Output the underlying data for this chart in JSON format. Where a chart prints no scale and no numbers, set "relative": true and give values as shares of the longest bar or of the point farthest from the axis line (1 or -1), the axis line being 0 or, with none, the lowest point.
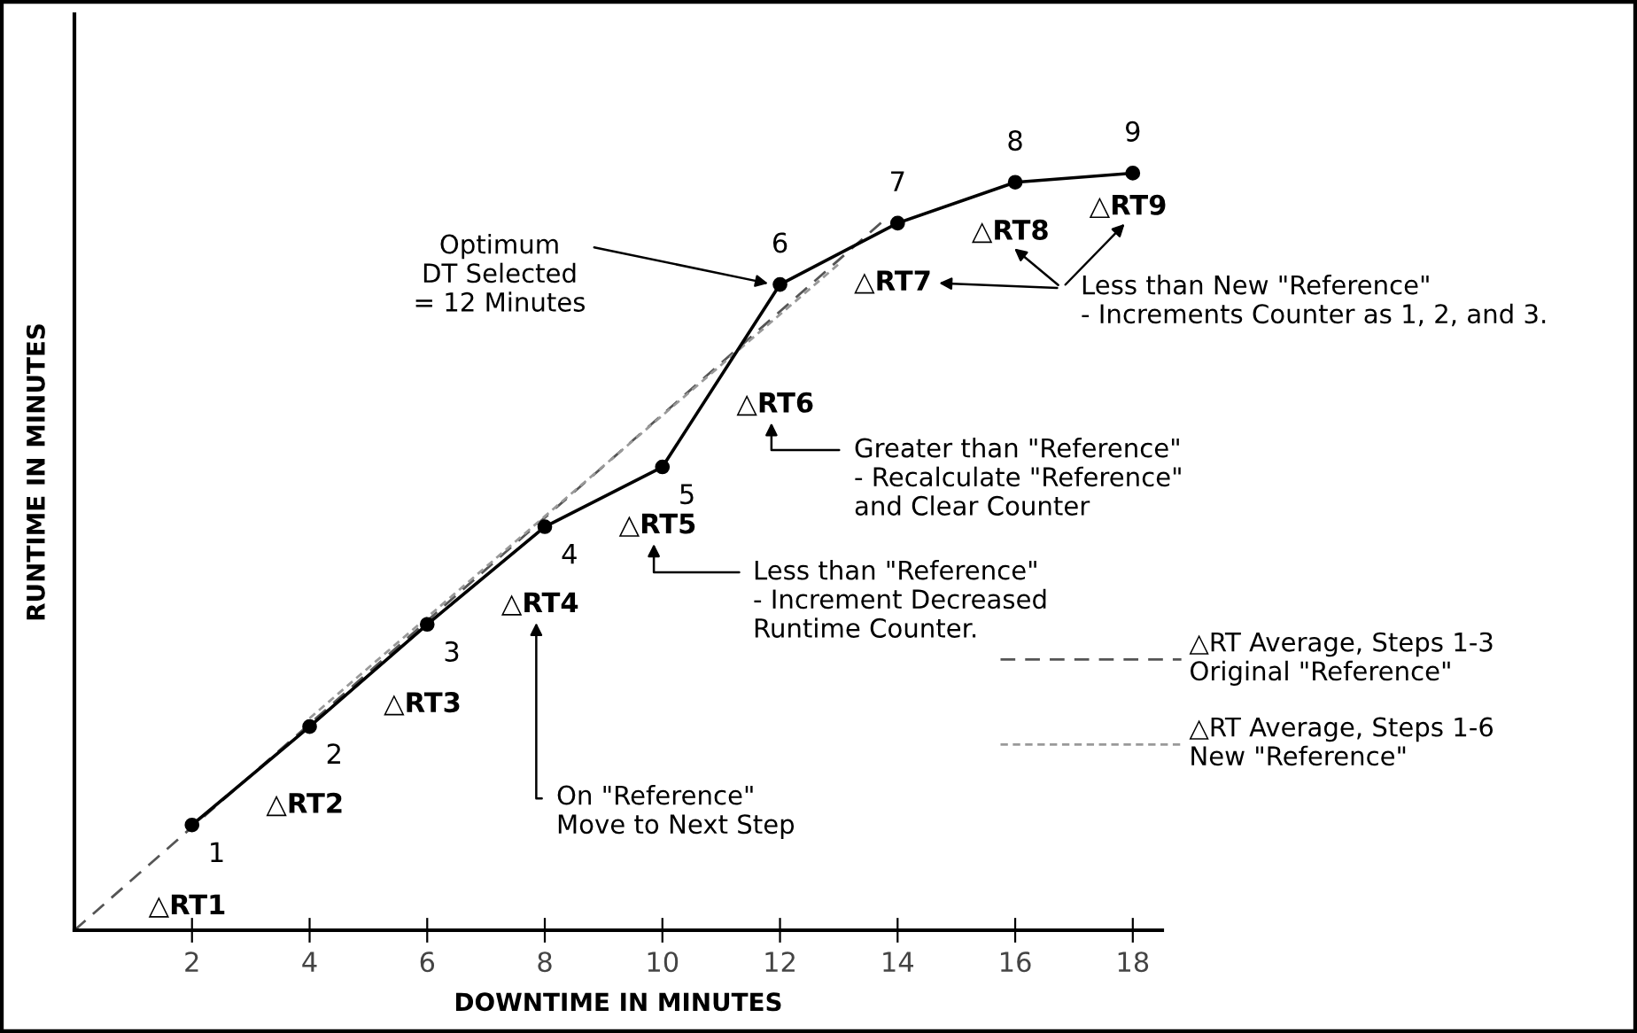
{
  "chart_data": {
    "type": "line",
    "relative": true,
    "xlabel": "DOWNTIME IN MINUTES",
    "ylabel": "RUNTIME IN MINUTES",
    "x": [
      2,
      4,
      6,
      8,
      10,
      12,
      14,
      16,
      18
    ],
    "series": [
      {
        "color": "#000000",
        "values": [
          0.139,
          0.269,
          0.404,
          0.533,
          0.612,
          0.853,
          0.934,
          0.988,
          1
        ],
        "marker": "circle",
        "line_style": "solid"
      },
      {
        "name": "△RT Average, Steps 1-3\nOriginal \"Reference\"",
        "color": "#555555",
        "x": [
          0,
          13.8
        ],
        "values": [
          0,
          0.94
        ],
        "line_style": "dashed",
        "marker": "none"
      },
      {
        "name": "△RT Average, Steps 1-6\nNew \"Reference\"",
        "color": "#999999",
        "x": [
          4,
          13.0
        ],
        "values": [
          0.28,
          0.88
        ],
        "line_style": "dashed",
        "marker": "none"
      }
    ],
    "xlim": [
      0,
      18.5
    ],
    "xticks": [
      2,
      4,
      6,
      8,
      10,
      12,
      14,
      16,
      18
    ],
    "grid": false,
    "legend": "right",
    "annotations": [
      {
        "text": "1",
        "x": 2,
        "y": 0.139
      },
      {
        "text": "2",
        "x": 4,
        "y": 0.269
      },
      {
        "text": "3",
        "x": 6,
        "y": 0.404
      },
      {
        "text": "4",
        "x": 8,
        "y": 0.533
      },
      {
        "text": "5",
        "x": 10,
        "y": 0.612
      },
      {
        "text": "6",
        "x": 12,
        "y": 0.853
      },
      {
        "text": "7",
        "x": 14,
        "y": 0.934
      },
      {
        "text": "8",
        "x": 16,
        "y": 0.988
      },
      {
        "text": "9",
        "x": 18,
        "y": 1
      },
      {
        "text": "△RT1",
        "x": 1,
        "y": 0.07
      },
      {
        "text": "△RT2",
        "x": 3,
        "y": 0.204
      },
      {
        "text": "△RT3",
        "x": 5,
        "y": 0.337
      },
      {
        "text": "△RT4",
        "x": 7,
        "y": 0.469
      },
      {
        "text": "△RT5",
        "x": 9,
        "y": 0.573
      },
      {
        "text": "△RT6",
        "x": 11,
        "y": 0.733
      },
      {
        "text": "△RT7",
        "x": 13,
        "y": 0.894
      },
      {
        "text": "△RT8",
        "x": 15,
        "y": 0.961
      },
      {
        "text": "△RT9",
        "x": 17,
        "y": 0.994
      },
      {
        "text": "Optimum\nDT Selected\n= 12 Minutes",
        "x": 12,
        "y": 0.853
      },
      "On \"Reference\"\nMove to Next Step",
      "Less than \"Reference\"\n- Increment Decreased\nRuntime Counter.",
      "Greater than \"Reference\"\n- Recalculate \"Reference\"\nand Clear Counter",
      "Less than New \"Reference\"\n- Increments Counter as 1, 2, and 3."
    ]
  }
}
